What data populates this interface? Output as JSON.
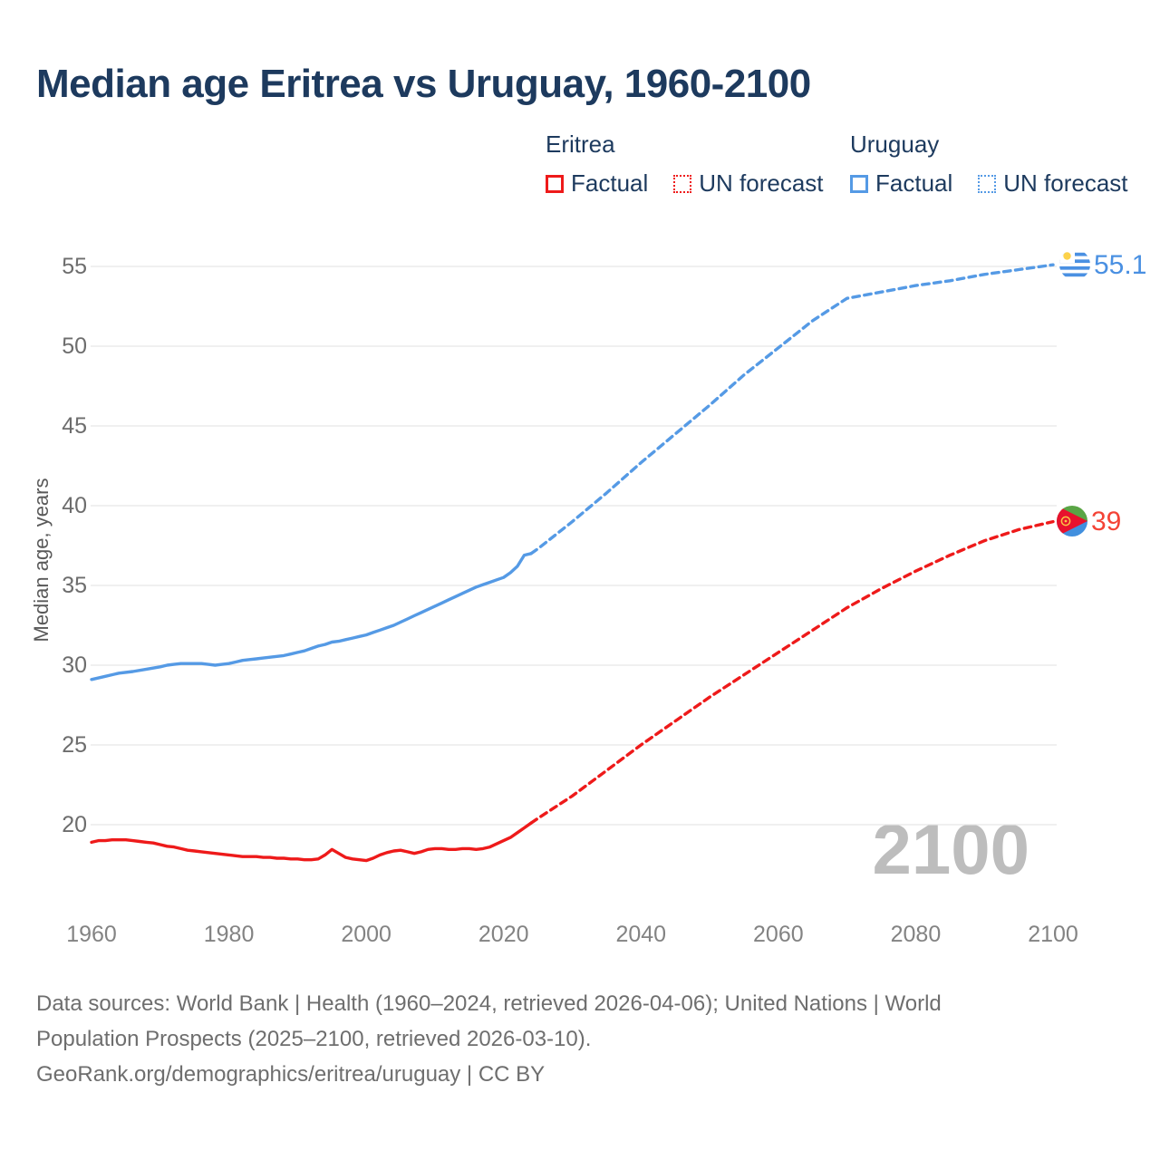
{
  "title": "Median age Eritrea vs Uruguay, 1960-2100",
  "legend": {
    "groups": [
      {
        "name": "Eritrea",
        "color": "#ee1a1a",
        "items": [
          {
            "label": "Factual",
            "style": "solid"
          },
          {
            "label": "UN forecast",
            "style": "dotted"
          }
        ]
      },
      {
        "name": "Uruguay",
        "color": "#559ae5",
        "items": [
          {
            "label": "Factual",
            "style": "solid"
          },
          {
            "label": "UN forecast",
            "style": "dotted"
          }
        ]
      }
    ]
  },
  "axes": {
    "ylabel": "Median age, years",
    "yticks": [
      20,
      25,
      30,
      35,
      40,
      45,
      50,
      55
    ],
    "xticks": [
      1960,
      1980,
      2000,
      2020,
      2040,
      2060,
      2080,
      2100
    ]
  },
  "end_labels": {
    "uruguay": {
      "value": "55.1",
      "flag": "uruguay-flag"
    },
    "eritrea": {
      "value": "39",
      "flag": "eritrea-flag"
    }
  },
  "watermark": "2100",
  "footer": {
    "line1": "Data sources: World Bank | Health (1960–2024, retrieved 2026-04-06); United Nations | World",
    "line2": "Population Prospects (2025–2100, retrieved 2026-03-10).",
    "line3": "GeoRank.org/demographics/eritrea/uruguay | CC BY"
  },
  "colors": {
    "eritrea_red": "#ee1a1a",
    "eritrea_label_red": "#f44336",
    "uruguay_blue": "#559ae5",
    "uruguay_label_blue": "#4a90e2",
    "title_navy": "#1d3a5e",
    "grid_gray": "#e7e7e7",
    "watermark_gray": "#bdbdbd",
    "footer_gray": "#6e6e6e"
  },
  "chart_data": {
    "type": "line",
    "title": "Median age Eritrea vs Uruguay, 1960-2100",
    "xlabel": "",
    "ylabel": "Median age, years",
    "xlim": [
      1960,
      2100
    ],
    "ylim": [
      17.5,
      56
    ],
    "grid": true,
    "legend_position": "top",
    "series": [
      {
        "id": "eritrea-factual",
        "name": "Eritrea Factual",
        "color": "#ee1a1a",
        "dashed": false,
        "points": [
          [
            1960,
            18.9
          ],
          [
            1961,
            19.0
          ],
          [
            1962,
            19.0
          ],
          [
            1963,
            19.05
          ],
          [
            1964,
            19.05
          ],
          [
            1965,
            19.05
          ],
          [
            1966,
            19.0
          ],
          [
            1967,
            18.95
          ],
          [
            1968,
            18.9
          ],
          [
            1969,
            18.85
          ],
          [
            1970,
            18.75
          ],
          [
            1971,
            18.65
          ],
          [
            1972,
            18.6
          ],
          [
            1973,
            18.5
          ],
          [
            1974,
            18.4
          ],
          [
            1975,
            18.35
          ],
          [
            1976,
            18.3
          ],
          [
            1977,
            18.25
          ],
          [
            1978,
            18.2
          ],
          [
            1979,
            18.15
          ],
          [
            1980,
            18.1
          ],
          [
            1981,
            18.05
          ],
          [
            1982,
            18.0
          ],
          [
            1983,
            18.0
          ],
          [
            1984,
            18.0
          ],
          [
            1985,
            17.95
          ],
          [
            1986,
            17.95
          ],
          [
            1987,
            17.9
          ],
          [
            1988,
            17.9
          ],
          [
            1989,
            17.85
          ],
          [
            1990,
            17.85
          ],
          [
            1991,
            17.8
          ],
          [
            1992,
            17.8
          ],
          [
            1993,
            17.85
          ],
          [
            1994,
            18.1
          ],
          [
            1995,
            18.45
          ],
          [
            1996,
            18.2
          ],
          [
            1997,
            17.95
          ],
          [
            1998,
            17.85
          ],
          [
            1999,
            17.8
          ],
          [
            2000,
            17.75
          ],
          [
            2001,
            17.9
          ],
          [
            2002,
            18.1
          ],
          [
            2003,
            18.25
          ],
          [
            2004,
            18.35
          ],
          [
            2005,
            18.4
          ],
          [
            2006,
            18.3
          ],
          [
            2007,
            18.2
          ],
          [
            2008,
            18.3
          ],
          [
            2009,
            18.45
          ],
          [
            2010,
            18.5
          ],
          [
            2011,
            18.5
          ],
          [
            2012,
            18.45
          ],
          [
            2013,
            18.45
          ],
          [
            2014,
            18.5
          ],
          [
            2015,
            18.5
          ],
          [
            2016,
            18.45
          ],
          [
            2017,
            18.5
          ],
          [
            2018,
            18.6
          ],
          [
            2019,
            18.8
          ],
          [
            2020,
            19.0
          ],
          [
            2021,
            19.2
          ],
          [
            2022,
            19.5
          ],
          [
            2023,
            19.8
          ],
          [
            2024,
            20.1
          ]
        ]
      },
      {
        "id": "eritrea-forecast",
        "name": "Eritrea UN forecast",
        "color": "#ee1a1a",
        "dashed": true,
        "points": [
          [
            2024,
            20.1
          ],
          [
            2025,
            20.4
          ],
          [
            2030,
            21.8
          ],
          [
            2035,
            23.4
          ],
          [
            2040,
            25.0
          ],
          [
            2045,
            26.5
          ],
          [
            2050,
            28.0
          ],
          [
            2055,
            29.4
          ],
          [
            2060,
            30.8
          ],
          [
            2065,
            32.2
          ],
          [
            2070,
            33.6
          ],
          [
            2075,
            34.8
          ],
          [
            2080,
            35.9
          ],
          [
            2085,
            36.9
          ],
          [
            2090,
            37.8
          ],
          [
            2095,
            38.5
          ],
          [
            2100,
            39.0
          ]
        ]
      },
      {
        "id": "uruguay-factual",
        "name": "Uruguay Factual",
        "color": "#559ae5",
        "dashed": false,
        "points": [
          [
            1960,
            29.1
          ],
          [
            1962,
            29.3
          ],
          [
            1964,
            29.5
          ],
          [
            1966,
            29.6
          ],
          [
            1968,
            29.75
          ],
          [
            1970,
            29.9
          ],
          [
            1971,
            30.0
          ],
          [
            1972,
            30.05
          ],
          [
            1973,
            30.1
          ],
          [
            1974,
            30.1
          ],
          [
            1975,
            30.1
          ],
          [
            1976,
            30.1
          ],
          [
            1977,
            30.05
          ],
          [
            1978,
            30.0
          ],
          [
            1979,
            30.05
          ],
          [
            1980,
            30.1
          ],
          [
            1981,
            30.2
          ],
          [
            1982,
            30.3
          ],
          [
            1983,
            30.35
          ],
          [
            1984,
            30.4
          ],
          [
            1985,
            30.45
          ],
          [
            1986,
            30.5
          ],
          [
            1987,
            30.55
          ],
          [
            1988,
            30.6
          ],
          [
            1989,
            30.7
          ],
          [
            1990,
            30.8
          ],
          [
            1991,
            30.9
          ],
          [
            1992,
            31.05
          ],
          [
            1993,
            31.2
          ],
          [
            1994,
            31.3
          ],
          [
            1995,
            31.45
          ],
          [
            1996,
            31.5
          ],
          [
            1997,
            31.6
          ],
          [
            1998,
            31.7
          ],
          [
            1999,
            31.8
          ],
          [
            2000,
            31.9
          ],
          [
            2001,
            32.05
          ],
          [
            2002,
            32.2
          ],
          [
            2003,
            32.35
          ],
          [
            2004,
            32.5
          ],
          [
            2005,
            32.7
          ],
          [
            2006,
            32.9
          ],
          [
            2007,
            33.1
          ],
          [
            2008,
            33.3
          ],
          [
            2009,
            33.5
          ],
          [
            2010,
            33.7
          ],
          [
            2011,
            33.9
          ],
          [
            2012,
            34.1
          ],
          [
            2013,
            34.3
          ],
          [
            2014,
            34.5
          ],
          [
            2015,
            34.7
          ],
          [
            2016,
            34.9
          ],
          [
            2017,
            35.05
          ],
          [
            2018,
            35.2
          ],
          [
            2019,
            35.35
          ],
          [
            2020,
            35.5
          ],
          [
            2021,
            35.8
          ],
          [
            2022,
            36.2
          ],
          [
            2023,
            36.9
          ],
          [
            2024,
            37.0
          ]
        ]
      },
      {
        "id": "uruguay-forecast",
        "name": "Uruguay UN forecast",
        "color": "#559ae5",
        "dashed": true,
        "points": [
          [
            2024,
            37.0
          ],
          [
            2025,
            37.3
          ],
          [
            2030,
            39.0
          ],
          [
            2035,
            40.8
          ],
          [
            2040,
            42.7
          ],
          [
            2045,
            44.5
          ],
          [
            2050,
            46.3
          ],
          [
            2055,
            48.2
          ],
          [
            2060,
            49.9
          ],
          [
            2065,
            51.6
          ],
          [
            2070,
            53.0
          ],
          [
            2075,
            53.4
          ],
          [
            2080,
            53.8
          ],
          [
            2085,
            54.1
          ],
          [
            2090,
            54.5
          ],
          [
            2095,
            54.8
          ],
          [
            2100,
            55.1
          ]
        ]
      }
    ]
  }
}
